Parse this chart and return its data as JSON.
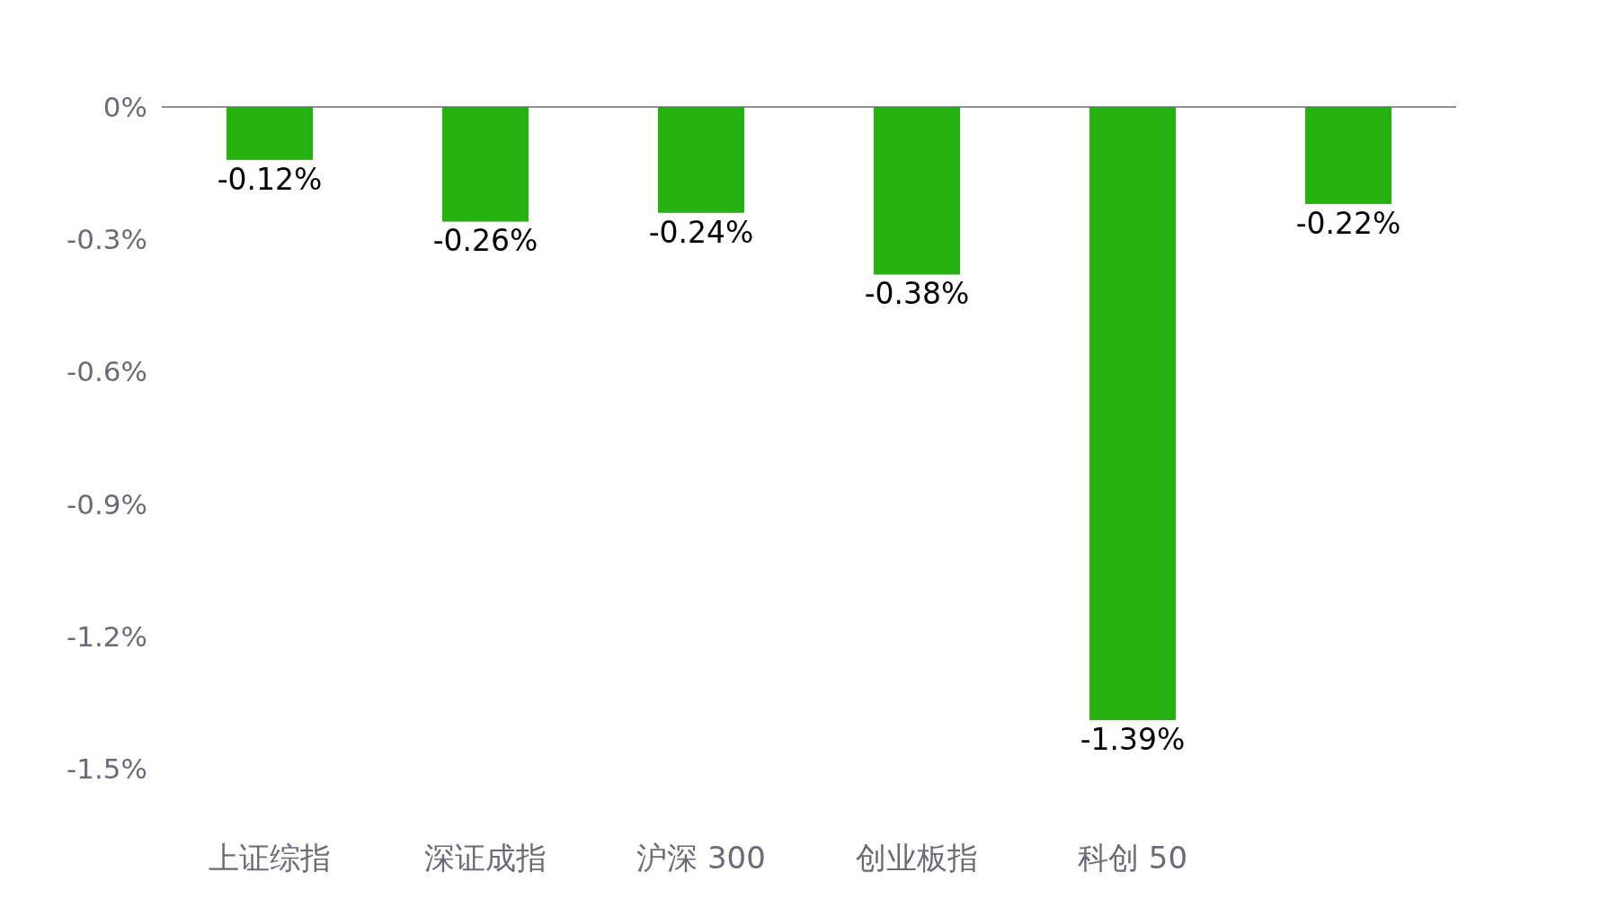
{
  "chart_data": {
    "type": "bar",
    "categories": [
      "上证综指",
      "深证成指",
      "沪深 300",
      "创业板指",
      "科创 50",
      null
    ],
    "values": [
      -0.12,
      -0.26,
      -0.24,
      -0.38,
      -1.39,
      -0.22
    ],
    "value_labels": [
      "-0.12%",
      "-0.26%",
      "-0.24%",
      "-0.38%",
      "-1.39%",
      "-0.22%"
    ],
    "color": "#27b30f",
    "ylim": [
      -1.5,
      0
    ],
    "yticks": [
      {
        "value": 0,
        "label": "0%"
      },
      {
        "value": -0.3,
        "label": "-0.3%"
      },
      {
        "value": -0.6,
        "label": "-0.6%"
      },
      {
        "value": -0.9,
        "label": "-0.9%"
      },
      {
        "value": -1.2,
        "label": "-1.2%"
      },
      {
        "value": -1.5,
        "label": "-1.5%"
      }
    ],
    "grid": false
  }
}
